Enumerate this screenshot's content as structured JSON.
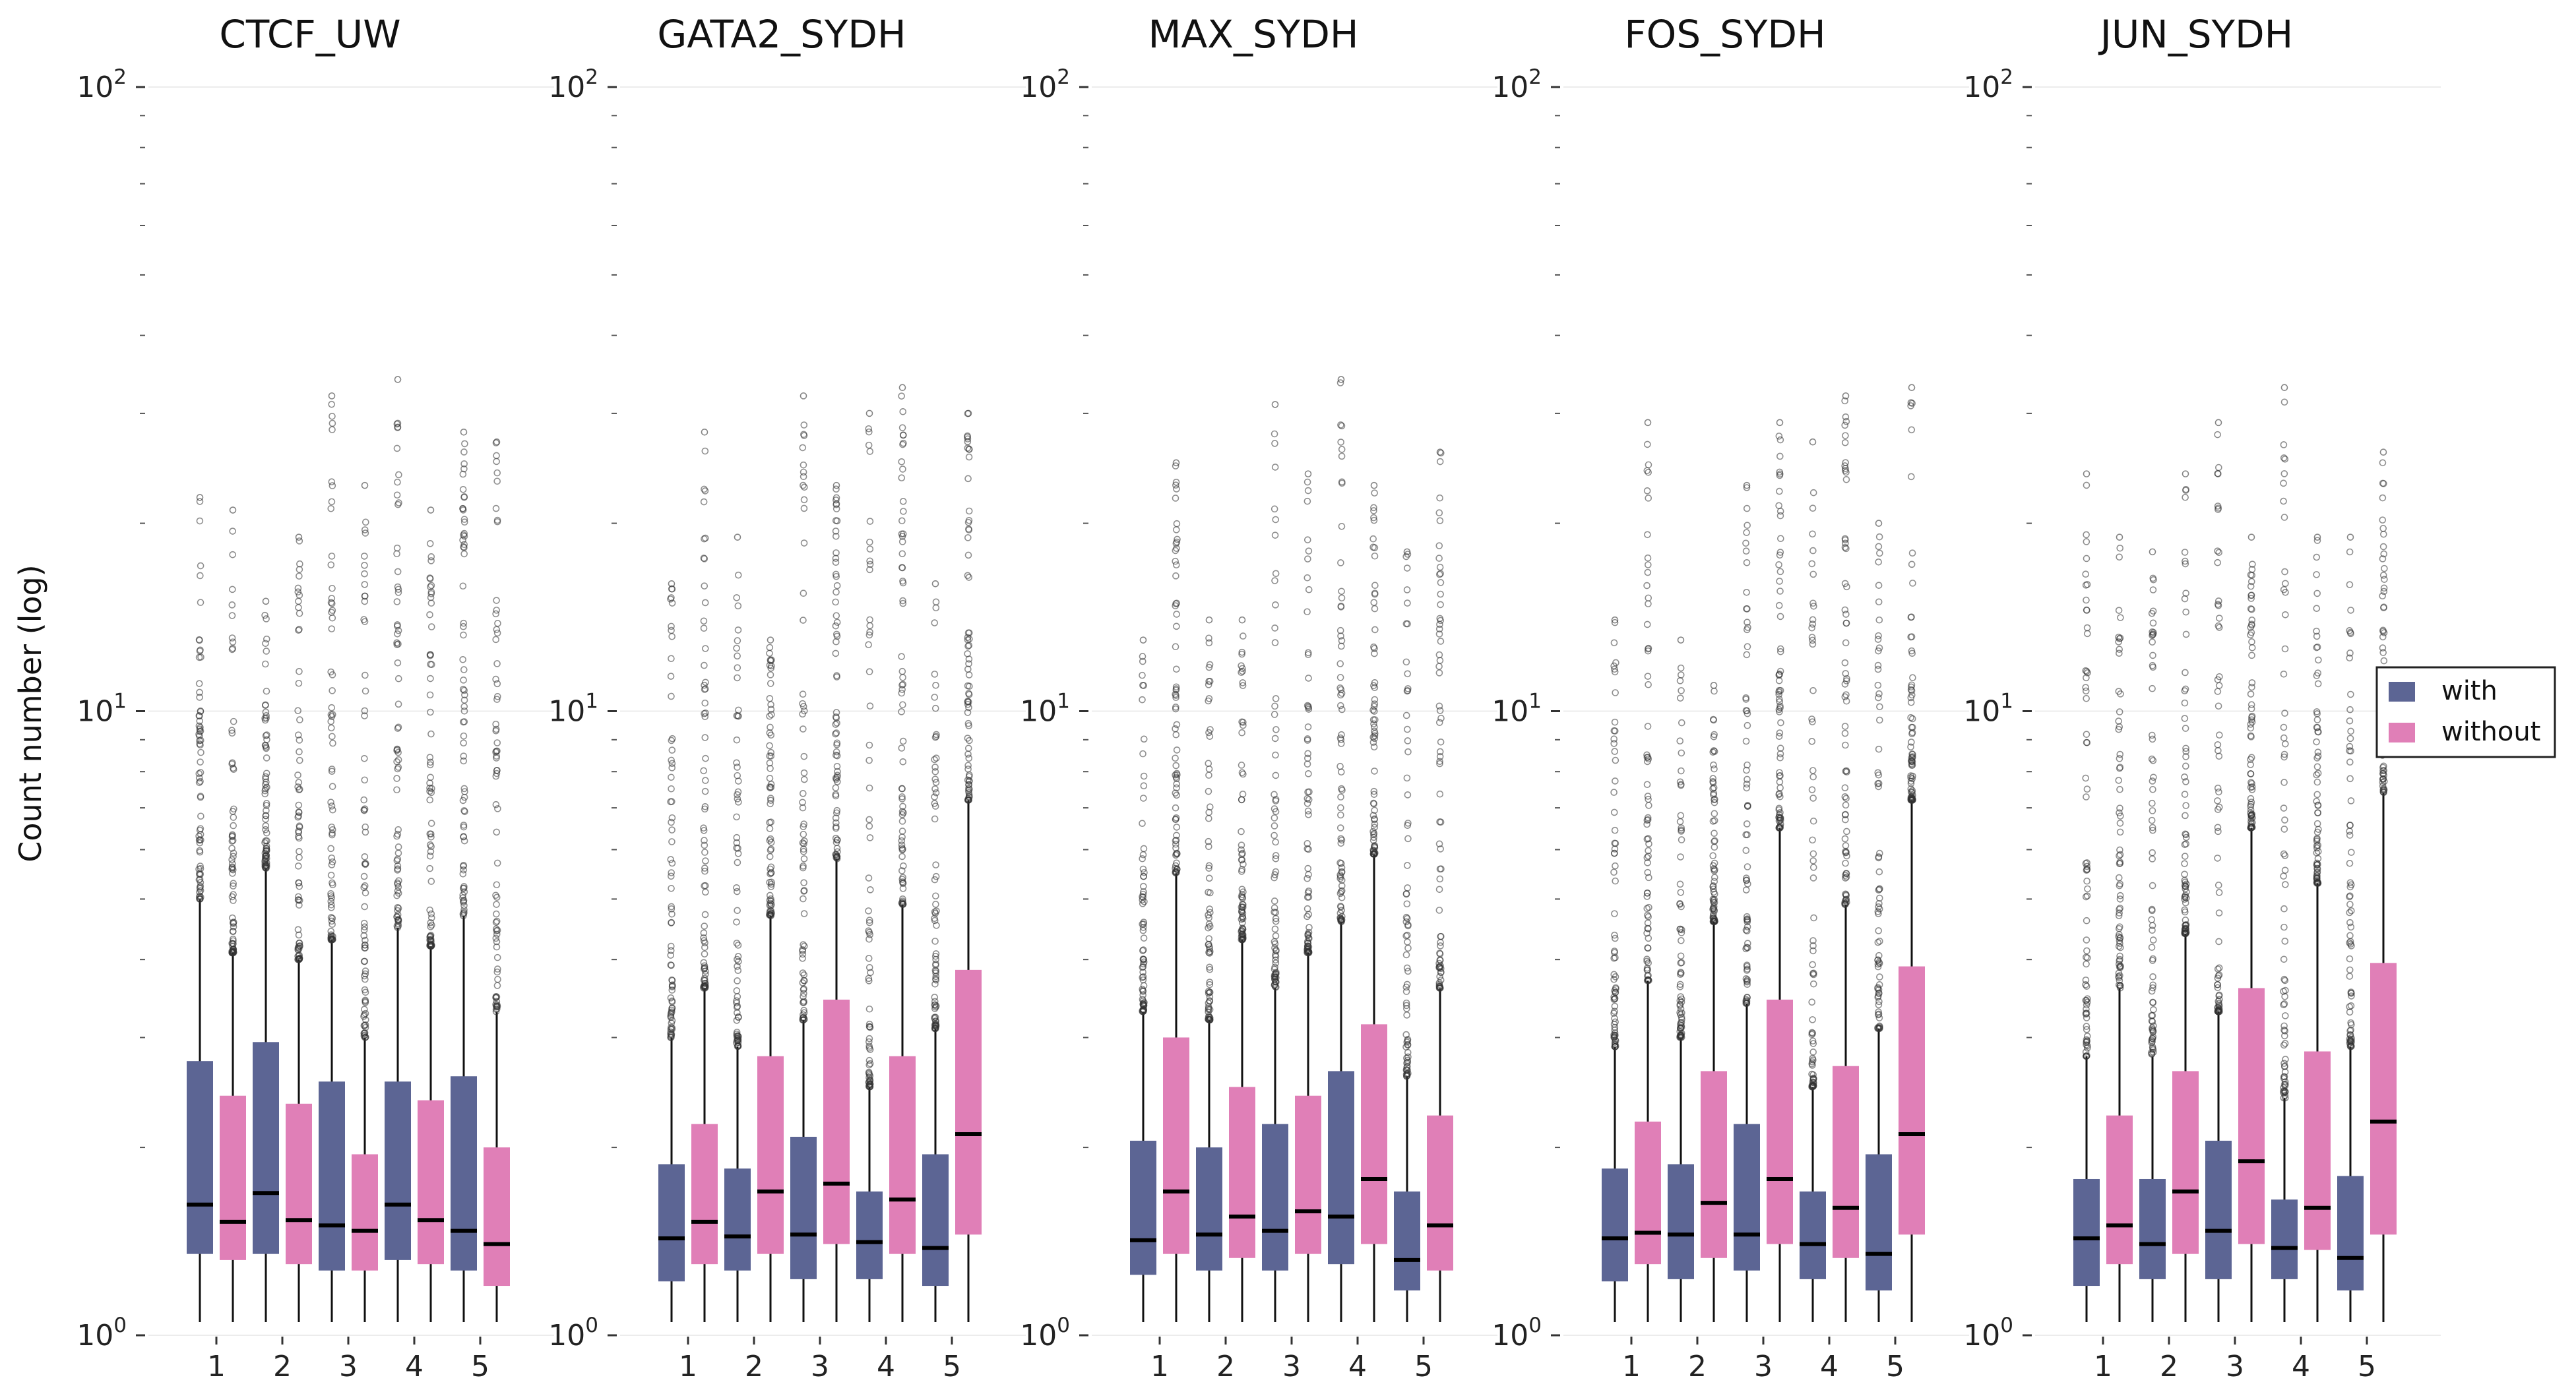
{
  "chart_data": {
    "type": "box",
    "ylabel": "Count number (log)",
    "yscale": "log",
    "ylim": [
      1,
      100
    ],
    "y_ticks": [
      {
        "value": 1,
        "base": "10",
        "exp": "0"
      },
      {
        "value": 10,
        "base": "10",
        "exp": "1"
      },
      {
        "value": 100,
        "base": "10",
        "exp": "2"
      }
    ],
    "grid": "horizontal at major ticks",
    "legend": {
      "position": "right",
      "entries": [
        {
          "label": "with",
          "color": "#5c6594"
        },
        {
          "label": "without",
          "color": "#e07fb7"
        }
      ]
    },
    "categories": [
      "1",
      "2",
      "3",
      "4",
      "5"
    ],
    "panels": [
      {
        "title": "CTCF_UW",
        "boxes": {
          "with": [
            {
              "q1": 1.35,
              "median": 1.62,
              "q3": 2.75,
              "wlo": 1.05,
              "whi": 5.0,
              "omax": 22
            },
            {
              "q1": 1.35,
              "median": 1.69,
              "q3": 2.95,
              "wlo": 1.05,
              "whi": 5.6,
              "omax": 15
            },
            {
              "q1": 1.27,
              "median": 1.5,
              "q3": 2.55,
              "wlo": 1.05,
              "whi": 4.3,
              "omax": 32
            },
            {
              "q1": 1.32,
              "median": 1.62,
              "q3": 2.55,
              "wlo": 1.05,
              "whi": 4.5,
              "omax": 34
            },
            {
              "q1": 1.27,
              "median": 1.47,
              "q3": 2.6,
              "wlo": 1.05,
              "whi": 4.7,
              "omax": 28
            }
          ],
          "without": [
            {
              "q1": 1.32,
              "median": 1.52,
              "q3": 2.42,
              "wlo": 1.05,
              "whi": 4.1,
              "omax": 21
            },
            {
              "q1": 1.3,
              "median": 1.53,
              "q3": 2.35,
              "wlo": 1.05,
              "whi": 4.0,
              "omax": 19
            },
            {
              "q1": 1.27,
              "median": 1.47,
              "q3": 1.95,
              "wlo": 1.05,
              "whi": 3.0,
              "omax": 23
            },
            {
              "q1": 1.3,
              "median": 1.53,
              "q3": 2.38,
              "wlo": 1.05,
              "whi": 4.2,
              "omax": 21
            },
            {
              "q1": 1.2,
              "median": 1.4,
              "q3": 2.0,
              "wlo": 1.05,
              "whi": 3.3,
              "omax": 27
            }
          ]
        }
      },
      {
        "title": "GATA2_SYDH",
        "boxes": {
          "with": [
            {
              "q1": 1.22,
              "median": 1.43,
              "q3": 1.88,
              "wlo": 1.05,
              "whi": 3.0,
              "omax": 16
            },
            {
              "q1": 1.27,
              "median": 1.44,
              "q3": 1.85,
              "wlo": 1.05,
              "whi": 2.9,
              "omax": 19
            },
            {
              "q1": 1.23,
              "median": 1.45,
              "q3": 2.08,
              "wlo": 1.05,
              "whi": 3.2,
              "omax": 32
            },
            {
              "q1": 1.23,
              "median": 1.41,
              "q3": 1.7,
              "wlo": 1.05,
              "whi": 2.5,
              "omax": 30
            },
            {
              "q1": 1.2,
              "median": 1.38,
              "q3": 1.95,
              "wlo": 1.05,
              "whi": 3.1,
              "omax": 16
            }
          ],
          "without": [
            {
              "q1": 1.3,
              "median": 1.52,
              "q3": 2.18,
              "wlo": 1.05,
              "whi": 3.6,
              "omax": 28
            },
            {
              "q1": 1.35,
              "median": 1.7,
              "q3": 2.8,
              "wlo": 1.05,
              "whi": 4.7,
              "omax": 13
            },
            {
              "q1": 1.4,
              "median": 1.75,
              "q3": 3.45,
              "wlo": 1.05,
              "whi": 5.8,
              "omax": 23
            },
            {
              "q1": 1.35,
              "median": 1.65,
              "q3": 2.8,
              "wlo": 1.05,
              "whi": 4.9,
              "omax": 33
            },
            {
              "q1": 1.45,
              "median": 2.1,
              "q3": 3.85,
              "wlo": 1.05,
              "whi": 7.2,
              "omax": 30
            }
          ]
        }
      },
      {
        "title": "MAX_SYDH",
        "boxes": {
          "with": [
            {
              "q1": 1.25,
              "median": 1.42,
              "q3": 2.05,
              "wlo": 1.05,
              "whi": 3.3,
              "omax": 13
            },
            {
              "q1": 1.27,
              "median": 1.45,
              "q3": 2.0,
              "wlo": 1.05,
              "whi": 3.2,
              "omax": 14
            },
            {
              "q1": 1.27,
              "median": 1.47,
              "q3": 2.18,
              "wlo": 1.05,
              "whi": 3.6,
              "omax": 31
            },
            {
              "q1": 1.3,
              "median": 1.55,
              "q3": 2.65,
              "wlo": 1.05,
              "whi": 4.6,
              "omax": 34
            },
            {
              "q1": 1.18,
              "median": 1.32,
              "q3": 1.7,
              "wlo": 1.05,
              "whi": 2.6,
              "omax": 18
            }
          ],
          "without": [
            {
              "q1": 1.35,
              "median": 1.7,
              "q3": 3.0,
              "wlo": 1.05,
              "whi": 5.5,
              "omax": 25
            },
            {
              "q1": 1.33,
              "median": 1.55,
              "q3": 2.5,
              "wlo": 1.05,
              "whi": 4.3,
              "omax": 14
            },
            {
              "q1": 1.35,
              "median": 1.58,
              "q3": 2.42,
              "wlo": 1.05,
              "whi": 4.1,
              "omax": 24
            },
            {
              "q1": 1.4,
              "median": 1.78,
              "q3": 3.15,
              "wlo": 1.05,
              "whi": 5.9,
              "omax": 23
            },
            {
              "q1": 1.27,
              "median": 1.5,
              "q3": 2.25,
              "wlo": 1.05,
              "whi": 3.6,
              "omax": 26
            }
          ]
        }
      },
      {
        "title": "FOS_SYDH",
        "boxes": {
          "with": [
            {
              "q1": 1.22,
              "median": 1.43,
              "q3": 1.85,
              "wlo": 1.05,
              "whi": 2.9,
              "omax": 14
            },
            {
              "q1": 1.23,
              "median": 1.45,
              "q3": 1.88,
              "wlo": 1.05,
              "whi": 3.0,
              "omax": 13
            },
            {
              "q1": 1.27,
              "median": 1.45,
              "q3": 2.18,
              "wlo": 1.05,
              "whi": 3.4,
              "omax": 23
            },
            {
              "q1": 1.23,
              "median": 1.4,
              "q3": 1.7,
              "wlo": 1.05,
              "whi": 2.5,
              "omax": 27
            },
            {
              "q1": 1.18,
              "median": 1.35,
              "q3": 1.95,
              "wlo": 1.05,
              "whi": 3.1,
              "omax": 20
            }
          ],
          "without": [
            {
              "q1": 1.3,
              "median": 1.46,
              "q3": 2.2,
              "wlo": 1.05,
              "whi": 3.7,
              "omax": 29
            },
            {
              "q1": 1.33,
              "median": 1.63,
              "q3": 2.65,
              "wlo": 1.05,
              "whi": 4.6,
              "omax": 11
            },
            {
              "q1": 1.4,
              "median": 1.78,
              "q3": 3.45,
              "wlo": 1.05,
              "whi": 6.5,
              "omax": 29
            },
            {
              "q1": 1.33,
              "median": 1.6,
              "q3": 2.7,
              "wlo": 1.05,
              "whi": 4.9,
              "omax": 32
            },
            {
              "q1": 1.45,
              "median": 2.1,
              "q3": 3.9,
              "wlo": 1.05,
              "whi": 7.2,
              "omax": 33
            }
          ]
        }
      },
      {
        "title": "JUN_SYDH",
        "boxes": {
          "with": [
            {
              "q1": 1.2,
              "median": 1.43,
              "q3": 1.78,
              "wlo": 1.05,
              "whi": 2.8,
              "omax": 24
            },
            {
              "q1": 1.23,
              "median": 1.4,
              "q3": 1.78,
              "wlo": 1.05,
              "whi": 2.8,
              "omax": 18
            },
            {
              "q1": 1.23,
              "median": 1.47,
              "q3": 2.05,
              "wlo": 1.05,
              "whi": 3.3,
              "omax": 29
            },
            {
              "q1": 1.23,
              "median": 1.38,
              "q3": 1.65,
              "wlo": 1.05,
              "whi": 2.4,
              "omax": 33
            },
            {
              "q1": 1.18,
              "median": 1.33,
              "q3": 1.8,
              "wlo": 1.05,
              "whi": 2.9,
              "omax": 19
            }
          ],
          "without": [
            {
              "q1": 1.3,
              "median": 1.5,
              "q3": 2.25,
              "wlo": 1.05,
              "whi": 3.6,
              "omax": 19
            },
            {
              "q1": 1.35,
              "median": 1.7,
              "q3": 2.65,
              "wlo": 1.05,
              "whi": 4.4,
              "omax": 24
            },
            {
              "q1": 1.4,
              "median": 1.9,
              "q3": 3.6,
              "wlo": 1.05,
              "whi": 6.5,
              "omax": 19
            },
            {
              "q1": 1.37,
              "median": 1.6,
              "q3": 2.85,
              "wlo": 1.05,
              "whi": 5.3,
              "omax": 19
            },
            {
              "q1": 1.45,
              "median": 2.2,
              "q3": 3.95,
              "wlo": 1.05,
              "whi": 7.4,
              "omax": 26
            }
          ]
        }
      }
    ]
  }
}
